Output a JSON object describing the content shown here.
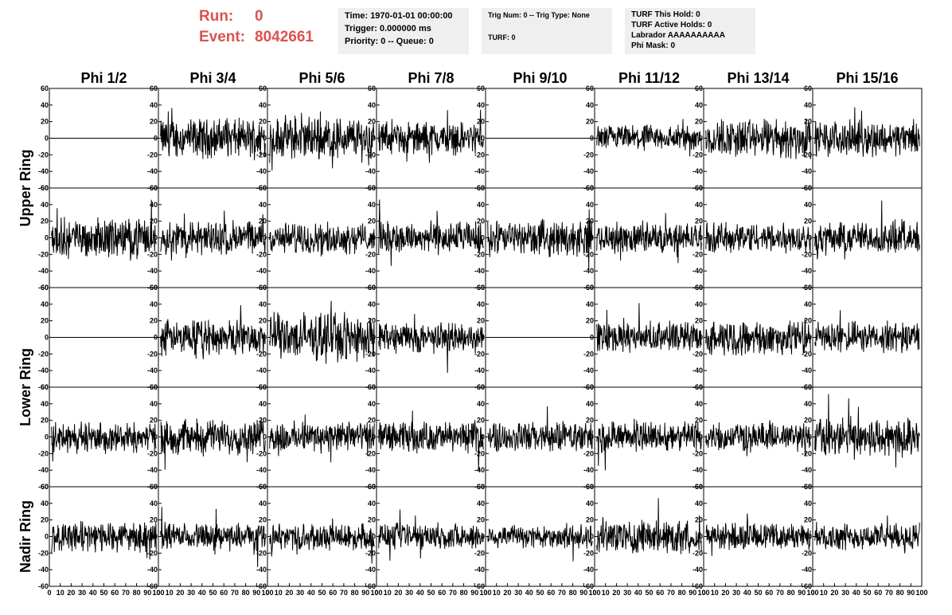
{
  "header": {
    "run_label": "Run:",
    "run_value": "0",
    "event_label": "Event:",
    "event_value": "8042661",
    "info1": [
      "Time: 1970-01-01 00:00:00",
      "Trigger: 0.000000 ms",
      "Priority: 0 -- Queue: 0"
    ],
    "info2": [
      "Trig Num: 0 -- Trig Type: None",
      "",
      "TURF: 0"
    ],
    "info3": [
      "TURF This Hold: 0",
      "TURF Active Holds: 0",
      "Labrador AAAAAAAAAA",
      "Phi Mask: 0"
    ]
  },
  "chart_data": {
    "type": "line",
    "columns": [
      "Phi 1/2",
      "Phi 3/4",
      "Phi 5/6",
      "Phi 7/8",
      "Phi 9/10",
      "Phi 11/12",
      "Phi 13/14",
      "Phi 15/16"
    ],
    "rings": [
      "Upper Ring",
      "Lower Ring",
      "Nadir Ring"
    ],
    "ring_rows": [
      2,
      2,
      1
    ],
    "rows": 5,
    "ylim": [
      -60,
      60
    ],
    "yticks": [
      -60,
      -40,
      -20,
      0,
      20,
      40,
      60
    ],
    "xlim": [
      0,
      100
    ],
    "xticks": [
      0,
      10,
      20,
      30,
      40,
      50,
      60,
      70,
      80,
      90,
      100
    ],
    "x_tick_labels_note": "",
    "flat_panels": [
      [
        0,
        0
      ],
      [
        0,
        4
      ],
      [
        2,
        0
      ],
      [
        2,
        4
      ]
    ],
    "amplitude": [
      [
        0,
        18,
        20,
        15,
        0,
        12,
        18,
        16
      ],
      [
        18,
        16,
        14,
        15,
        16,
        14,
        14,
        15
      ],
      [
        0,
        16,
        22,
        14,
        0,
        14,
        16,
        14
      ],
      [
        14,
        16,
        14,
        14,
        14,
        14,
        13,
        18
      ],
      [
        14,
        12,
        12,
        12,
        11,
        16,
        12,
        12
      ]
    ]
  }
}
